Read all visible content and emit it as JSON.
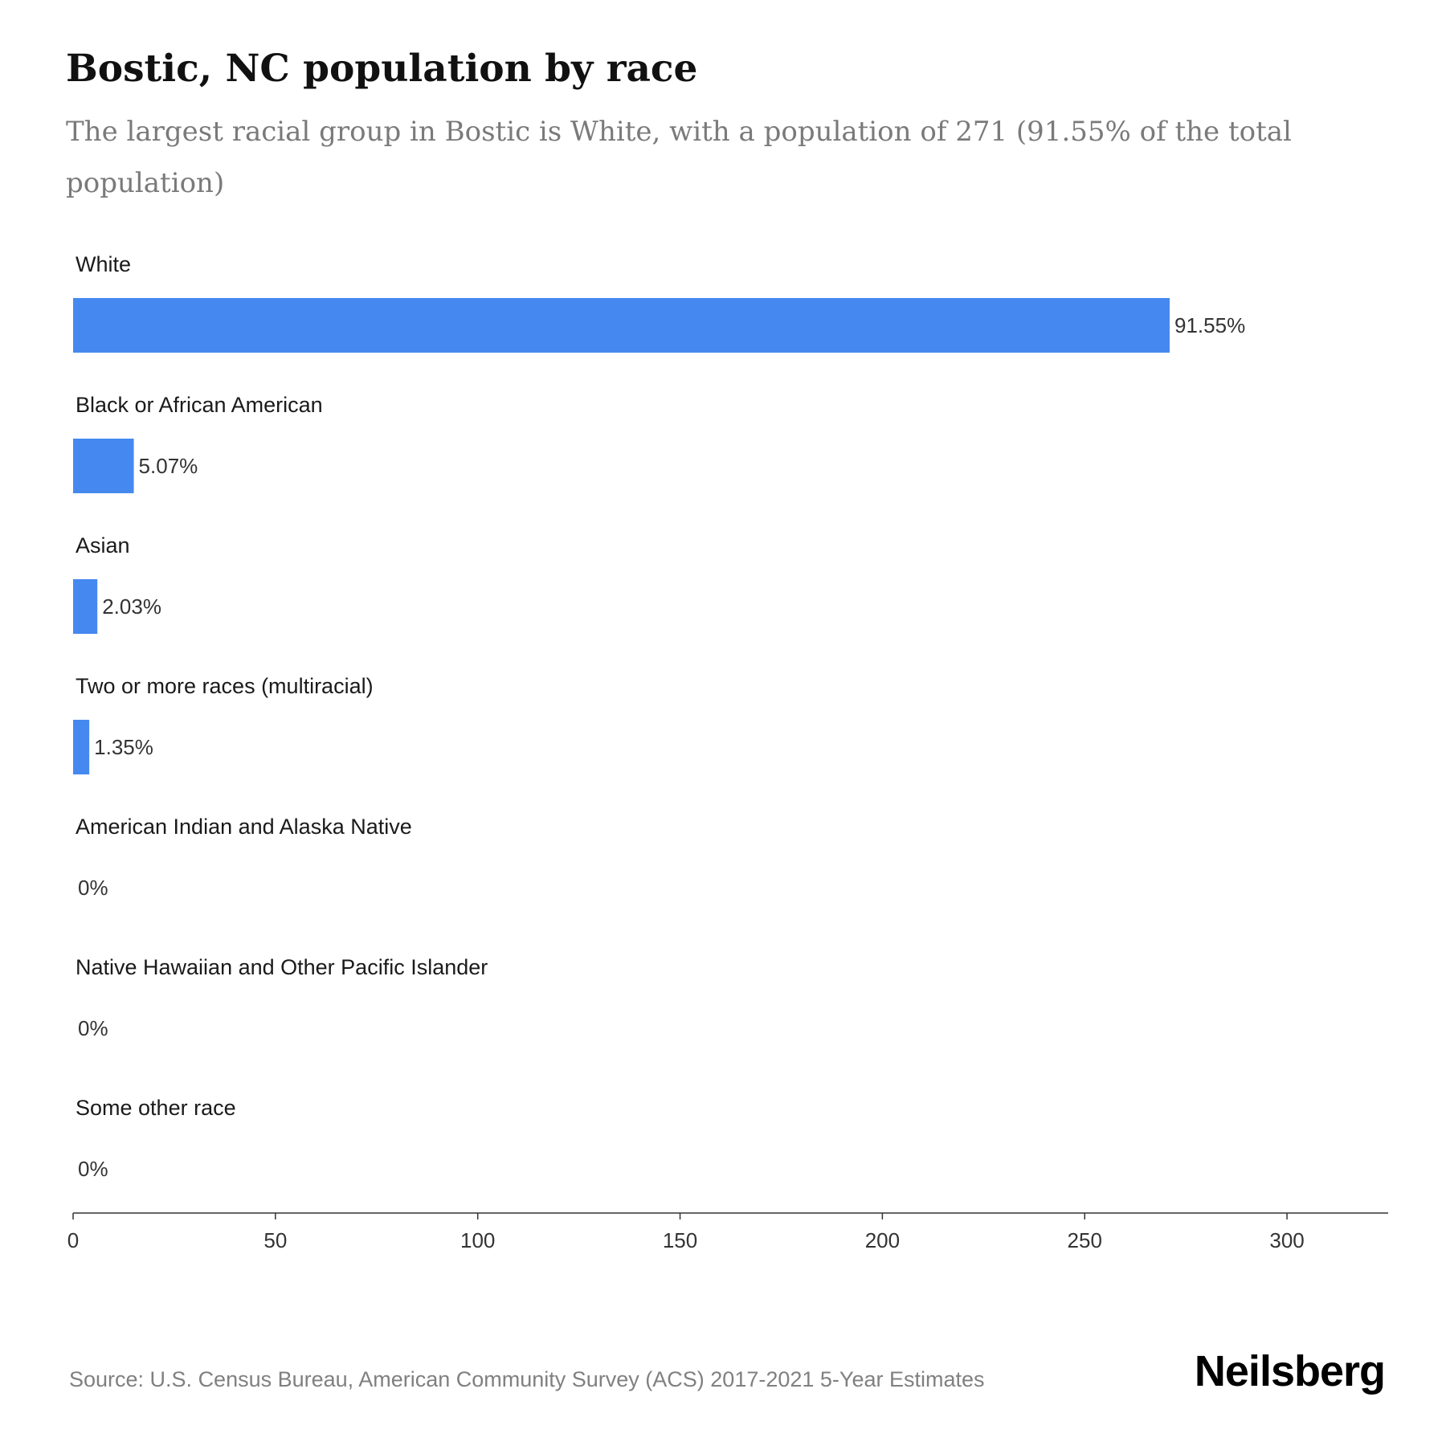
{
  "header": {
    "title": "Bostic, NC population by race",
    "subtitle": "The largest racial group in Bostic is White, with a population of 271 (91.55% of the total population)"
  },
  "chart_data": {
    "type": "bar",
    "orientation": "horizontal",
    "categories": [
      "White",
      "Black or African American",
      "Asian",
      "Two or more races (multiracial)",
      "American Indian and Alaska Native",
      "Native Hawaiian and Other Pacific Islander",
      "Some other race"
    ],
    "values": [
      271,
      15,
      6,
      4,
      0,
      0,
      0
    ],
    "value_labels": [
      "91.55%",
      "5.07%",
      "2.03%",
      "1.35%",
      "0%",
      "0%",
      "0%"
    ],
    "xlim": [
      0,
      325
    ],
    "xticks": [
      0,
      50,
      100,
      150,
      200,
      250,
      300
    ],
    "grid": false,
    "bar_color": "#4589F0"
  },
  "footer": {
    "source": "Source: U.S. Census Bureau, American Community Survey (ACS) 2017-2021 5-Year Estimates",
    "brand": "Neilsberg"
  }
}
